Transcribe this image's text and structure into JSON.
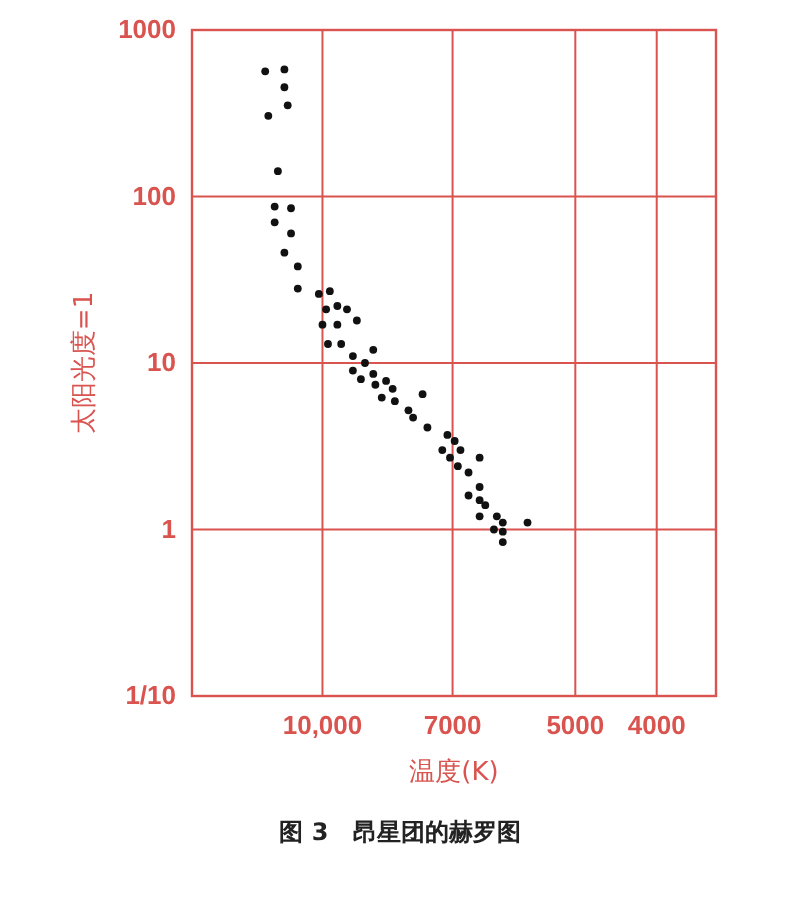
{
  "chart_data": {
    "type": "scatter",
    "title": "图 3　昂星团的赫罗图",
    "xlabel": "温度(K)",
    "ylabel": "太阳光度=1",
    "x": [
      11700,
      11100,
      11100,
      11000,
      11600,
      11300,
      11400,
      10900,
      11400,
      10900,
      11100,
      10700,
      10700,
      10100,
      9800,
      9900,
      9600,
      9350,
      10000,
      9600,
      9100,
      9850,
      9500,
      8700,
      9200,
      8900,
      9200,
      8700,
      9000,
      8400,
      8650,
      8250,
      8500,
      8200,
      7600,
      7900,
      7800,
      7500,
      7100,
      6960,
      6850,
      7200,
      7050,
      6500,
      6900,
      6700,
      6500,
      6700,
      6500,
      6400,
      6200,
      6100,
      6500,
      5700,
      6250,
      6100,
      6100
    ],
    "values": [
      565,
      580,
      453,
      353,
      305,
      142,
      87,
      85,
      70,
      60,
      46,
      38,
      28,
      26,
      27,
      21,
      22,
      21,
      17,
      17,
      18,
      13,
      13,
      12,
      11,
      10,
      9,
      8.6,
      8,
      7.8,
      7.4,
      7,
      6.2,
      5.9,
      6.5,
      5.2,
      4.7,
      4.1,
      3.7,
      3.4,
      3,
      3,
      2.7,
      2.7,
      2.4,
      2.2,
      1.8,
      1.6,
      1.5,
      1.4,
      1.2,
      1.1,
      1.2,
      1.1,
      1,
      0.97,
      0.84
    ],
    "color": "#111111",
    "marker": "circle",
    "log": "xy",
    "grid": true,
    "xlim": [
      14300,
      3400
    ],
    "xticks": [
      {
        "value": 10000,
        "label": "10,000"
      },
      7000,
      5000,
      4000
    ],
    "ylim": [
      0.1,
      1000
    ],
    "yticks": [
      {
        "value": 0.1,
        "label": "1/10"
      },
      1,
      10,
      100,
      1000
    ]
  }
}
